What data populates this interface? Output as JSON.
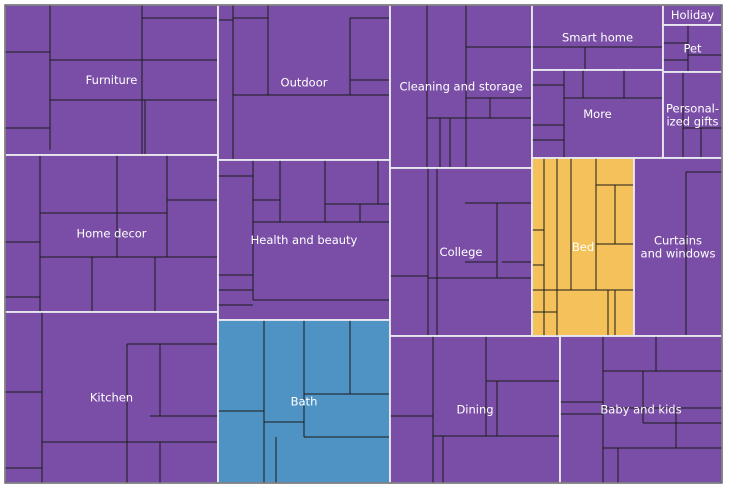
{
  "chart_data": {
    "type": "treemap",
    "title": "",
    "xlabel": "",
    "ylabel": "",
    "colors": {
      "default": "#7a4ea6",
      "highlight_orange": "#f5c15a",
      "highlight_blue": "#4f93c4",
      "group_border": "#e8e8f0",
      "inner_line": "#1a1a1a"
    },
    "categories": [
      {
        "label": "Furniture",
        "value": 319,
        "color": "#7a4ea6"
      },
      {
        "label": "Home decor",
        "value": 306,
        "color": "#7a4ea6"
      },
      {
        "label": "Kitchen",
        "value": 341,
        "color": "#7a4ea6"
      },
      {
        "label": "Outdoor",
        "value": 269,
        "color": "#7a4ea6"
      },
      {
        "label": "Health and beauty",
        "value": 280,
        "color": "#7a4ea6"
      },
      {
        "label": "Bath",
        "value": 279,
        "color": "#4f93c4"
      },
      {
        "label": "Cleaning and storage",
        "value": 233,
        "color": "#7a4ea6"
      },
      {
        "label": "College",
        "value": 236,
        "color": "#7a4ea6"
      },
      {
        "label": "Dining",
        "value": 212,
        "color": "#7a4ea6"
      },
      {
        "label": "Smart home",
        "value": 87,
        "color": "#7a4ea6"
      },
      {
        "label": "More",
        "value": 85,
        "color": "#7a4ea6"
      },
      {
        "label": "Holiday",
        "value": 18,
        "color": "#7a4ea6"
      },
      {
        "label": "Pet",
        "value": 45,
        "color": "#7a4ea6"
      },
      {
        "label": "Personal-\nized gifts",
        "value": 55,
        "color": "#7a4ea6"
      },
      {
        "label": "Bed",
        "value": 120,
        "color": "#f5c15a"
      },
      {
        "label": "Curtains\nand windows",
        "value": 132,
        "color": "#7a4ea6"
      },
      {
        "label": "Baby and kids",
        "value": 221,
        "color": "#7a4ea6"
      }
    ]
  }
}
